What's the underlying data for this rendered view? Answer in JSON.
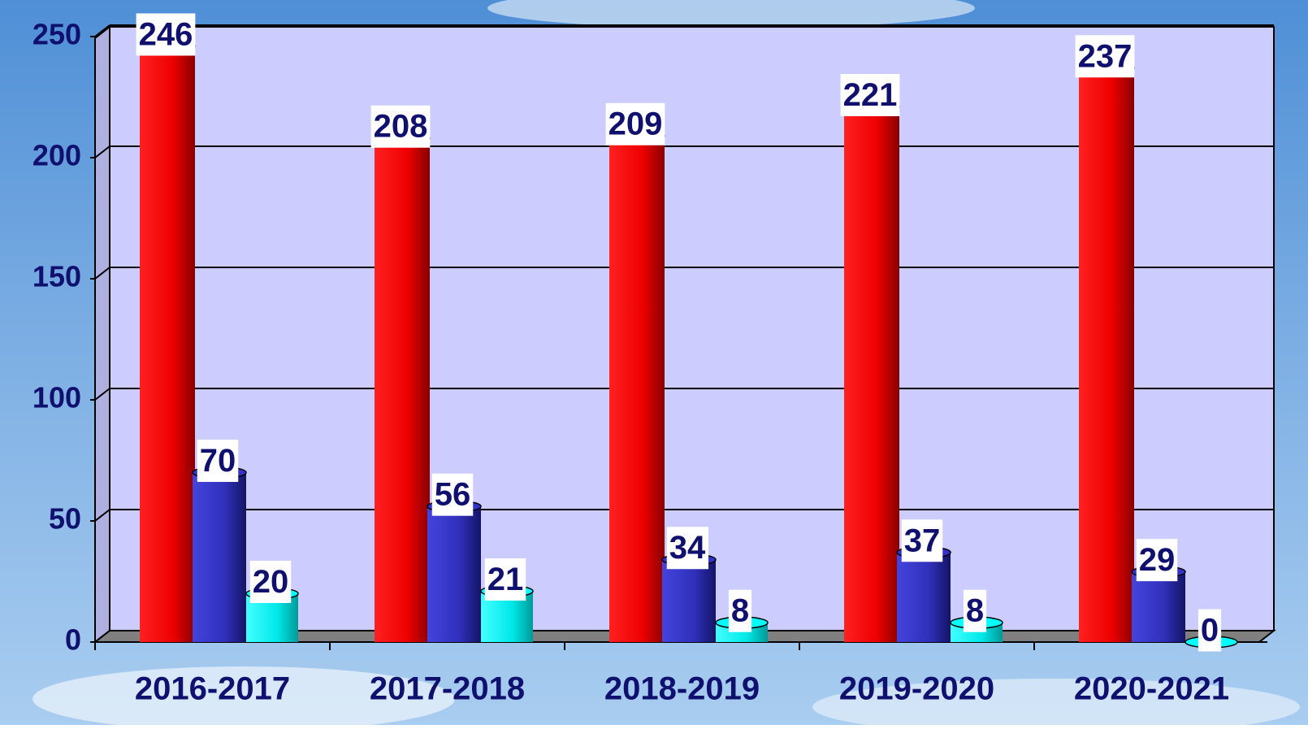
{
  "chart_data": {
    "type": "bar",
    "categories": [
      "2016-2017",
      "2017-2018",
      "2018-2019",
      "2019-2020",
      "2020-2021"
    ],
    "series": [
      {
        "color": "#ff0000",
        "values": [
          246,
          208,
          209,
          221,
          237
        ]
      },
      {
        "color": "#3333cc",
        "values": [
          70,
          56,
          34,
          37,
          29
        ]
      },
      {
        "color": "#00ffff",
        "values": [
          20,
          21,
          8,
          8,
          0
        ]
      }
    ],
    "ylim": [
      0,
      250
    ],
    "yticks": [
      0,
      50,
      100,
      150,
      200,
      250
    ],
    "grid": true
  }
}
